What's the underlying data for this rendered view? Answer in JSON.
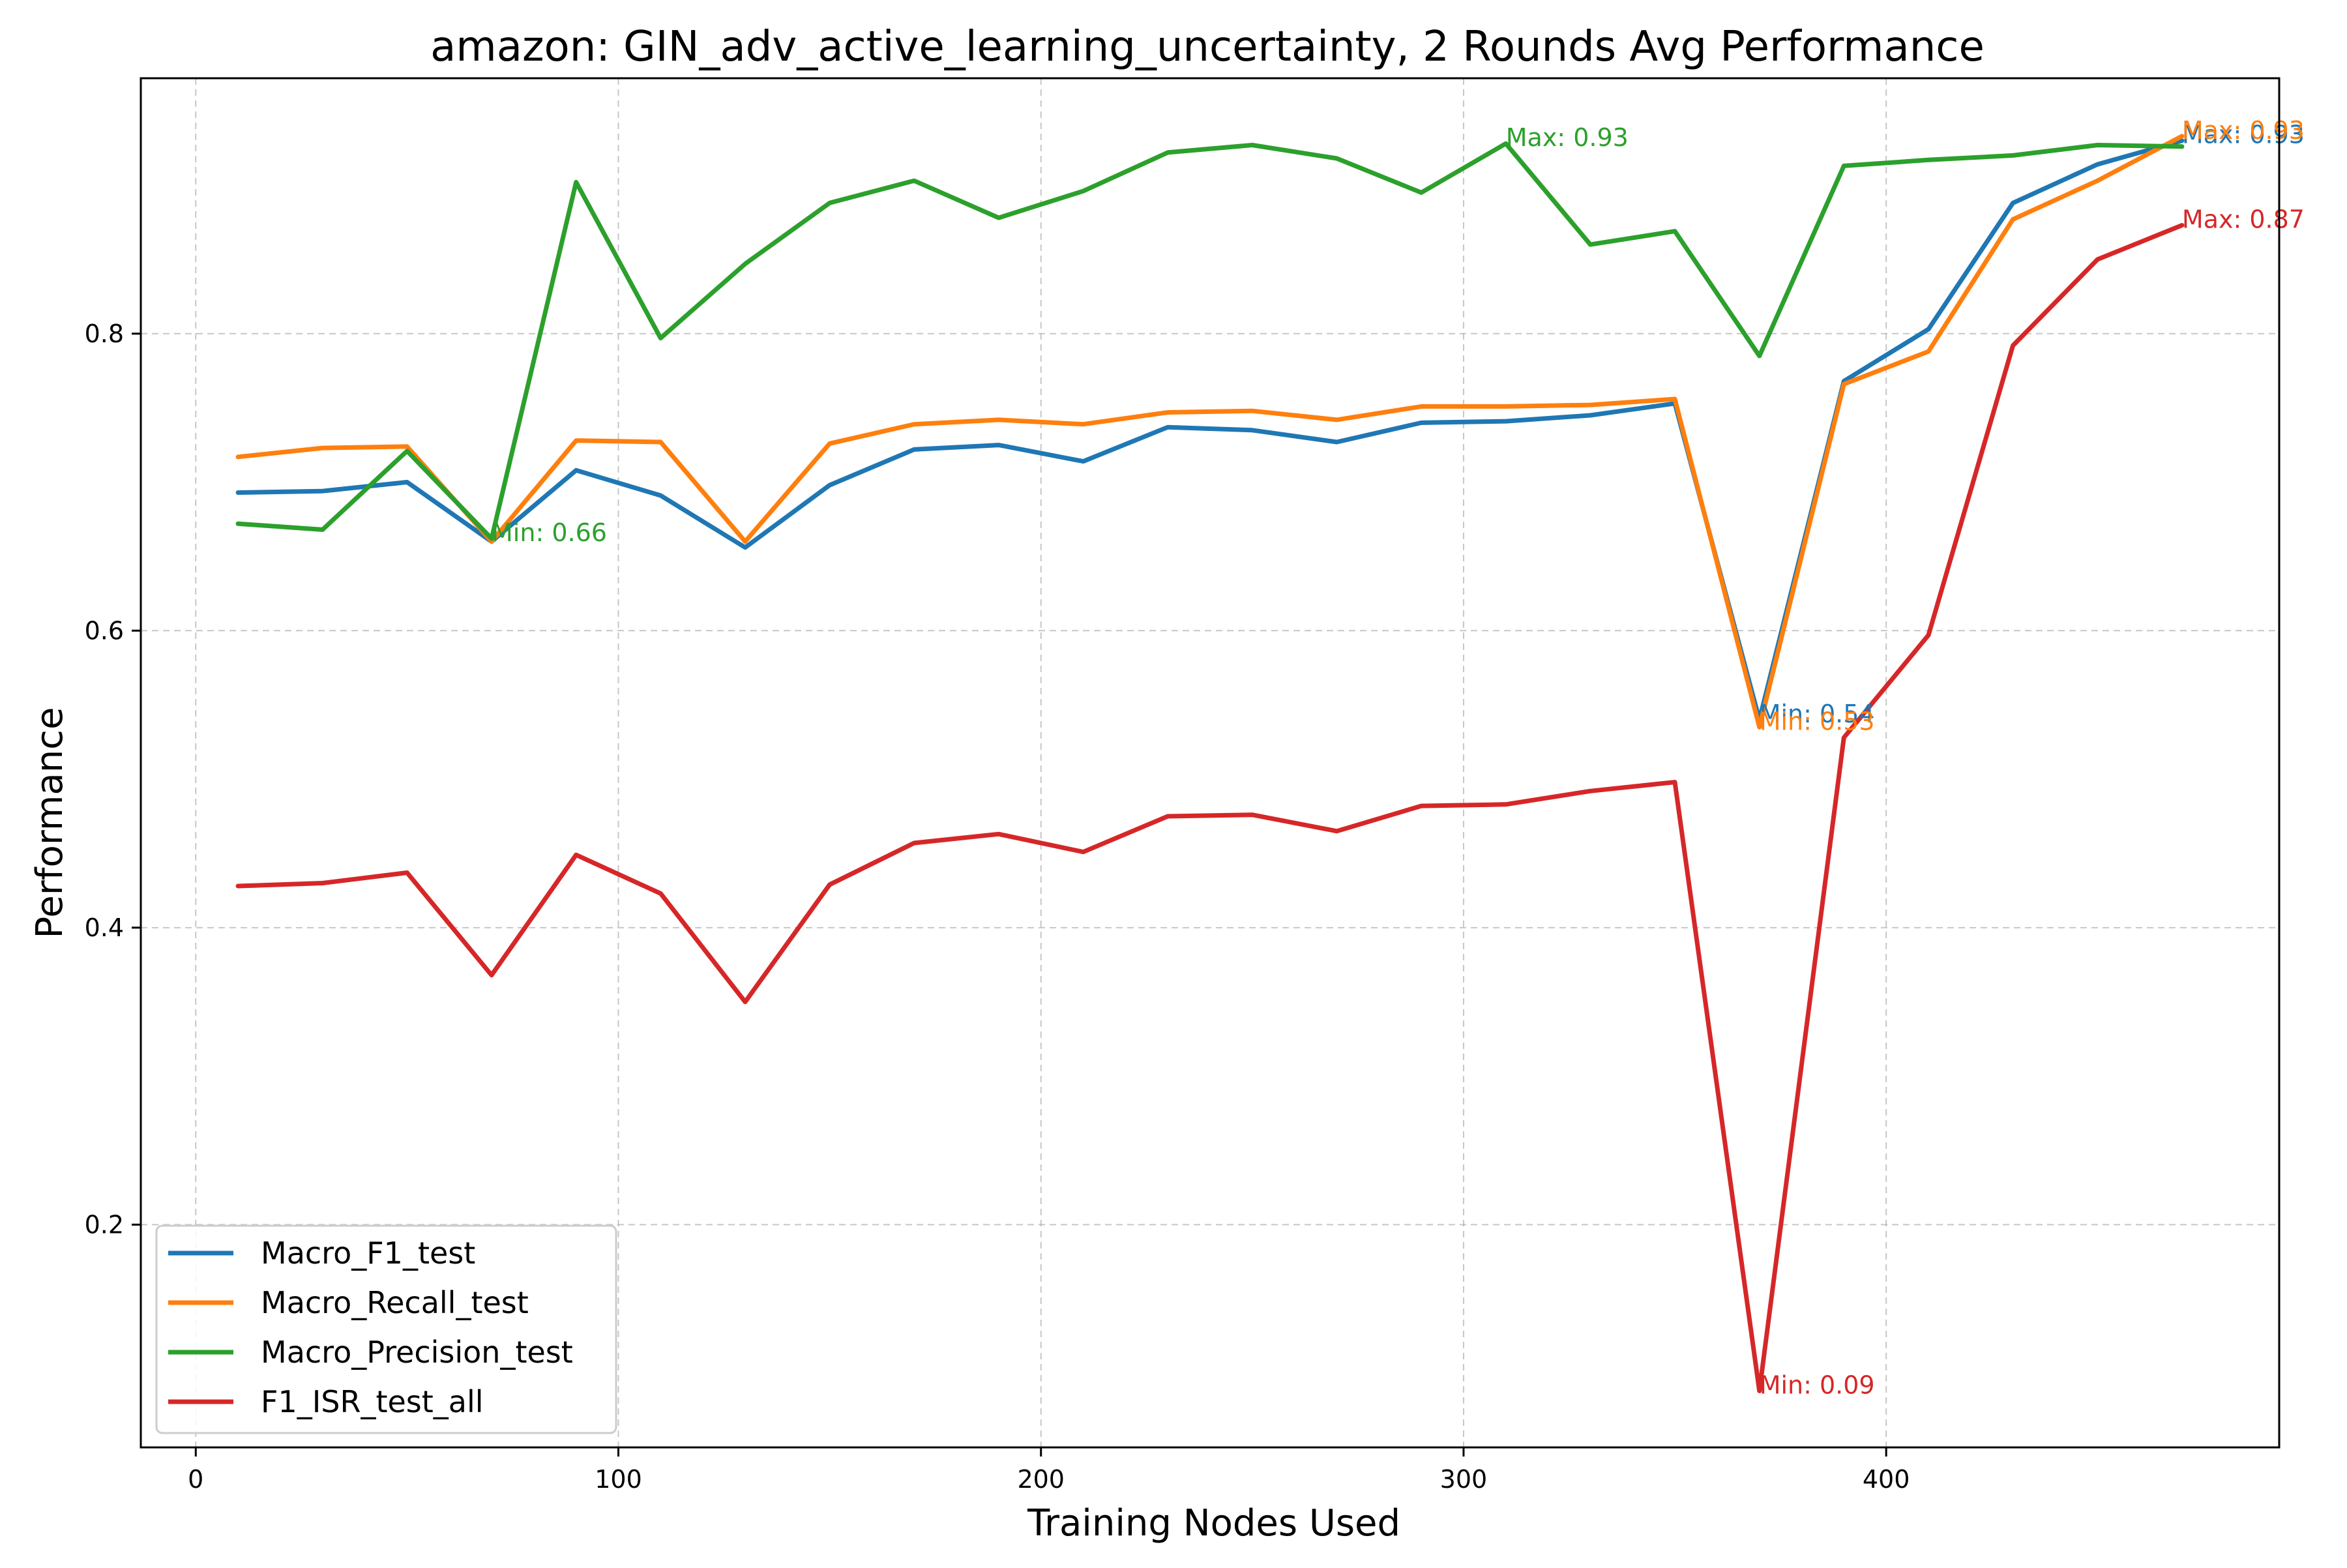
{
  "chart_data": {
    "type": "line",
    "title": "amazon: GIN_adv_active_learning_uncertainty, 2 Rounds Avg Performance",
    "xlabel": "Training Nodes Used",
    "ylabel": "Performance",
    "xlim": [
      -13,
      493
    ],
    "ylim": [
      0.05,
      0.972
    ],
    "xticks": [
      0,
      100,
      200,
      300,
      400
    ],
    "yticks": [
      0.2,
      0.4,
      0.6,
      0.8
    ],
    "xtick_labels": [
      "0",
      "100",
      "200",
      "300",
      "400"
    ],
    "ytick_labels": [
      "0.2",
      "0.4",
      "0.6",
      "0.8"
    ],
    "grid": true,
    "legend_position": "lower-left",
    "x": [
      10,
      30,
      50,
      70,
      90,
      110,
      130,
      150,
      170,
      190,
      210,
      230,
      250,
      270,
      290,
      310,
      330,
      350,
      370,
      390,
      410,
      430,
      450,
      470
    ],
    "series": [
      {
        "name": "Macro_F1_test",
        "color": "#1f77b4",
        "values": [
          0.693,
          0.694,
          0.7,
          0.66,
          0.708,
          0.691,
          0.656,
          0.698,
          0.722,
          0.725,
          0.714,
          0.737,
          0.735,
          0.727,
          0.74,
          0.741,
          0.745,
          0.753,
          0.54,
          0.768,
          0.803,
          0.888,
          0.914,
          0.93
        ]
      },
      {
        "name": "Macro_Recall_test",
        "color": "#ff7f0e",
        "values": [
          0.717,
          0.723,
          0.724,
          0.66,
          0.728,
          0.727,
          0.66,
          0.726,
          0.739,
          0.742,
          0.739,
          0.747,
          0.748,
          0.742,
          0.751,
          0.751,
          0.752,
          0.756,
          0.535,
          0.766,
          0.788,
          0.877,
          0.903,
          0.933
        ]
      },
      {
        "name": "Macro_Precision_test",
        "color": "#2ca02c",
        "values": [
          0.672,
          0.668,
          0.721,
          0.662,
          0.902,
          0.797,
          0.847,
          0.888,
          0.903,
          0.878,
          0.896,
          0.922,
          0.927,
          0.918,
          0.895,
          0.928,
          0.86,
          0.869,
          0.785,
          0.913,
          0.917,
          0.92,
          0.927,
          0.926
        ]
      },
      {
        "name": "F1_ISR_test_all",
        "color": "#d62728",
        "values": [
          0.428,
          0.43,
          0.437,
          0.368,
          0.449,
          0.423,
          0.35,
          0.429,
          0.457,
          0.463,
          0.451,
          0.475,
          0.476,
          0.465,
          0.482,
          0.483,
          0.492,
          0.498,
          0.088,
          0.528,
          0.597,
          0.792,
          0.85,
          0.873
        ]
      }
    ],
    "annotations": [
      {
        "text": "Max: 0.93",
        "series": 0,
        "x": 470,
        "y": 0.93
      },
      {
        "text": "Min: 0.54",
        "series": 0,
        "x": 370,
        "y": 0.54
      },
      {
        "text": "Max: 0.93",
        "series": 1,
        "x": 470,
        "y": 0.933
      },
      {
        "text": "Min: 0.53",
        "series": 1,
        "x": 370,
        "y": 0.535
      },
      {
        "text": "Max: 0.93",
        "series": 2,
        "x": 310,
        "y": 0.928
      },
      {
        "text": "Min: 0.66",
        "series": 2,
        "x": 70,
        "y": 0.662
      },
      {
        "text": "Max: 0.87",
        "series": 3,
        "x": 470,
        "y": 0.873
      },
      {
        "text": "Min: 0.09",
        "series": 3,
        "x": 370,
        "y": 0.088
      }
    ]
  }
}
